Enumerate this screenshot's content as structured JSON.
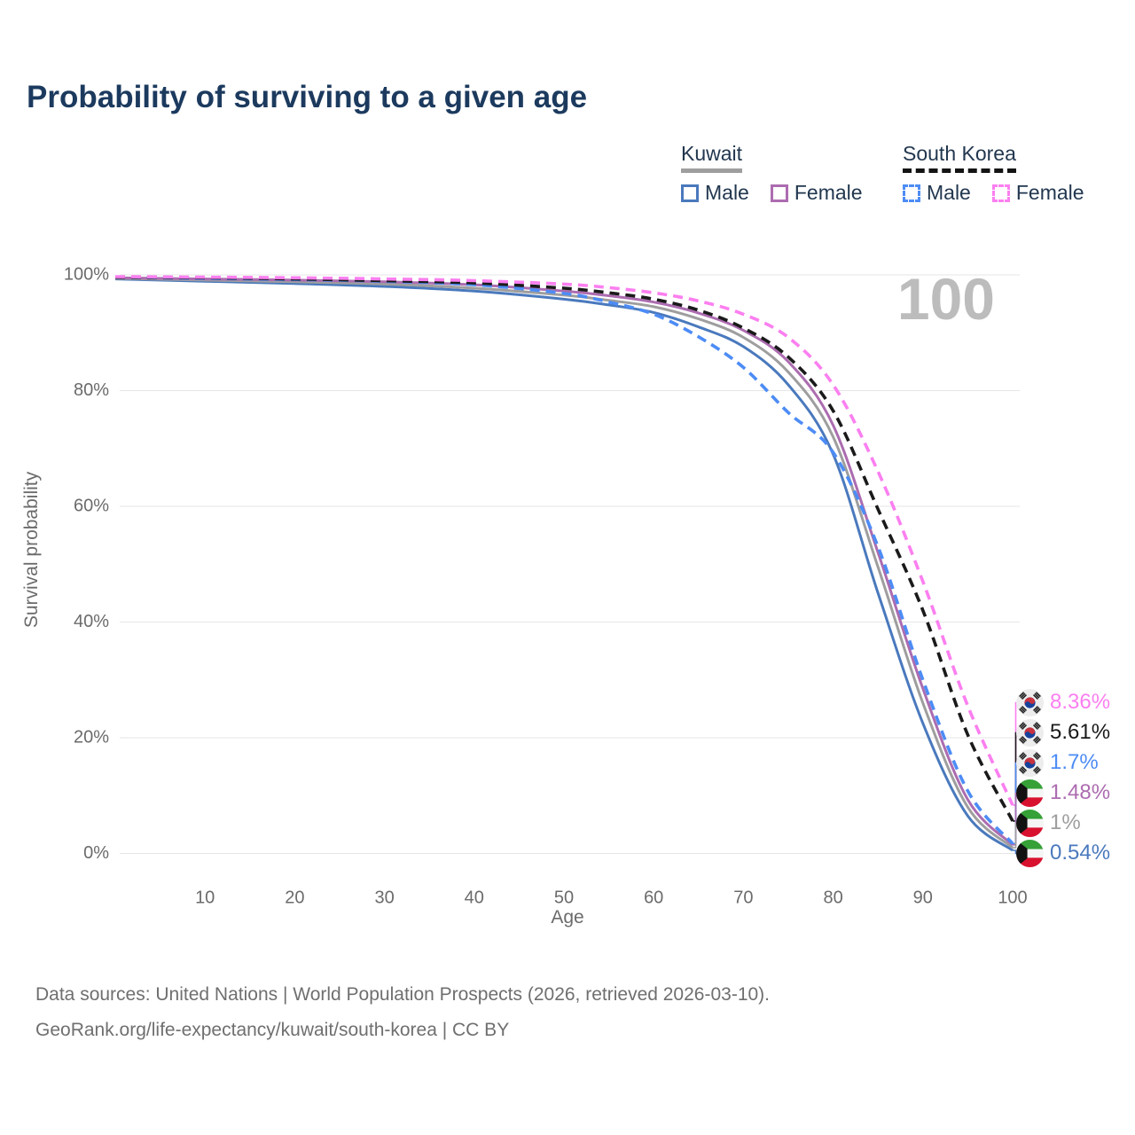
{
  "title": "Probability of surviving to a given age",
  "watermark_age": "100",
  "legend": {
    "groups": [
      {
        "title": "Kuwait",
        "line_style": "solid",
        "items": [
          {
            "label": "Male"
          },
          {
            "label": "Female"
          }
        ]
      },
      {
        "title": "South Korea",
        "line_style": "dashed",
        "items": [
          {
            "label": "Male"
          },
          {
            "label": "Female"
          }
        ]
      }
    ]
  },
  "chart_data": {
    "type": "line",
    "xlabel": "Age",
    "ylabel": "Survival probability",
    "xlim": [
      0,
      100
    ],
    "ylim": [
      0,
      100
    ],
    "grid": "horizontal",
    "legend_position": "top-right",
    "x_ticks": [
      "10",
      "20",
      "30",
      "40",
      "50",
      "60",
      "70",
      "80",
      "90",
      "100"
    ],
    "x_tick_values": [
      10,
      20,
      30,
      40,
      50,
      60,
      70,
      80,
      90,
      100
    ],
    "y_ticks": [
      "0%",
      "20%",
      "40%",
      "60%",
      "80%",
      "100%"
    ],
    "y_tick_values": [
      0,
      20,
      40,
      60,
      80,
      100
    ],
    "ages": [
      0,
      10,
      20,
      30,
      40,
      50,
      55,
      60,
      65,
      70,
      75,
      80,
      85,
      90,
      95,
      100
    ],
    "series": [
      {
        "name": "Kuwait Male",
        "country": "Kuwait",
        "sex": "male",
        "flag": "kw",
        "color": "#4a79bd",
        "dashed": false,
        "end_label": "0.54%",
        "end_value": 0.54,
        "values": [
          99.3,
          98.9,
          98.5,
          98.0,
          97.2,
          95.8,
          94.8,
          93.5,
          91.0,
          87.6,
          81.0,
          69.0,
          45.0,
          22.5,
          6.5,
          0.54
        ]
      },
      {
        "name": "Kuwait Female",
        "country": "Kuwait",
        "sex": "female",
        "flag": "kw",
        "color": "#ac6cb0",
        "dashed": false,
        "end_label": "1.48%",
        "end_value": 1.48,
        "values": [
          99.5,
          99.3,
          99.1,
          98.8,
          98.3,
          97.2,
          96.4,
          95.3,
          93.4,
          90.4,
          85.0,
          74.0,
          52.0,
          28.5,
          9.3,
          1.48
        ]
      },
      {
        "name": "Kuwait Both sexes",
        "country": "Kuwait",
        "sex": "both",
        "flag": "kw",
        "color": "#9e9e9e",
        "dashed": false,
        "end_label": "1%",
        "end_value": 1.0,
        "values": [
          99.4,
          99.1,
          98.8,
          98.4,
          97.7,
          96.5,
          95.6,
          94.5,
          92.4,
          89.2,
          83.2,
          72.0,
          49.5,
          26.0,
          8.0,
          1.0
        ]
      },
      {
        "name": "South Korea Male",
        "country": "South Korea",
        "sex": "male",
        "flag": "kr",
        "color": "#4d8cf5",
        "dashed": true,
        "end_label": "1.7%",
        "end_value": 1.7,
        "values": [
          99.6,
          99.4,
          99.2,
          98.9,
          98.3,
          96.8,
          95.3,
          93.2,
          89.3,
          84.0,
          76.2,
          69.3,
          53.0,
          30.0,
          10.8,
          1.7
        ]
      },
      {
        "name": "South Korea Female",
        "country": "South Korea",
        "sex": "female",
        "flag": "kr",
        "color": "#fb7ff0",
        "dashed": true,
        "end_label": "8.36%",
        "end_value": 8.36,
        "values": [
          99.7,
          99.6,
          99.5,
          99.3,
          99.0,
          98.4,
          97.8,
          96.9,
          95.5,
          93.2,
          89.2,
          81.0,
          66.0,
          47.0,
          25.5,
          8.36
        ]
      },
      {
        "name": "South Korea Both sexes",
        "country": "South Korea",
        "sex": "both",
        "flag": "kr",
        "color": "#1a1a1a",
        "dashed": true,
        "end_label": "5.61%",
        "end_value": 5.61,
        "values": [
          99.6,
          99.5,
          99.3,
          99.0,
          98.6,
          97.7,
          96.9,
          95.8,
          93.9,
          90.8,
          85.8,
          76.5,
          59.5,
          42.0,
          20.5,
          5.61
        ]
      }
    ]
  },
  "footer": {
    "line1": "Data sources: United Nations | World Population Prospects (2026, retrieved 2026-03-10).",
    "line2": "GeoRank.org/life-expectancy/kuwait/south-korea | CC BY"
  }
}
